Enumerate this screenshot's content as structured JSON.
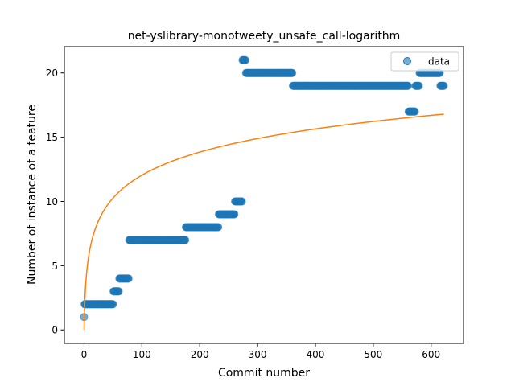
{
  "chart_data": {
    "type": "scatter",
    "title": "net-yslibrary-monotweety_unsafe_call-logarithm",
    "xlabel": "Commit number",
    "ylabel": "Number of instance of a feature",
    "xlim": [
      -34,
      656
    ],
    "ylim": [
      -1.05,
      22.05
    ],
    "xticks": [
      0,
      100,
      200,
      300,
      400,
      500,
      600
    ],
    "yticks": [
      0,
      5,
      10,
      15,
      20
    ],
    "legend": {
      "entries": [
        "data"
      ],
      "placement": "top-right"
    },
    "colors": {
      "data": "#1f77b4",
      "fit": "#ff7f0e"
    },
    "series": [
      {
        "name": "data",
        "kind": "scatter",
        "segments": [
          {
            "x_start": 0,
            "x_end": 0,
            "y": 1
          },
          {
            "x_start": 1,
            "x_end": 50,
            "y": 2
          },
          {
            "x_start": 51,
            "x_end": 60,
            "y": 3
          },
          {
            "x_start": 61,
            "x_end": 77,
            "y": 4
          },
          {
            "x_start": 78,
            "x_end": 175,
            "y": 7
          },
          {
            "x_start": 176,
            "x_end": 232,
            "y": 8
          },
          {
            "x_start": 233,
            "x_end": 260,
            "y": 9
          },
          {
            "x_start": 261,
            "x_end": 273,
            "y": 10
          },
          {
            "x_start": 274,
            "x_end": 279,
            "y": 21
          },
          {
            "x_start": 280,
            "x_end": 360,
            "y": 20
          },
          {
            "x_start": 361,
            "x_end": 560,
            "y": 19
          },
          {
            "x_start": 561,
            "x_end": 572,
            "y": 17
          },
          {
            "x_start": 573,
            "x_end": 579,
            "y": 19
          },
          {
            "x_start": 580,
            "x_end": 615,
            "y": 20
          },
          {
            "x_start": 616,
            "x_end": 622,
            "y": 19
          }
        ]
      },
      {
        "kind": "line",
        "function": "y = 2.61 * ln(x + 1)",
        "x_range": [
          0,
          623
        ]
      }
    ]
  }
}
